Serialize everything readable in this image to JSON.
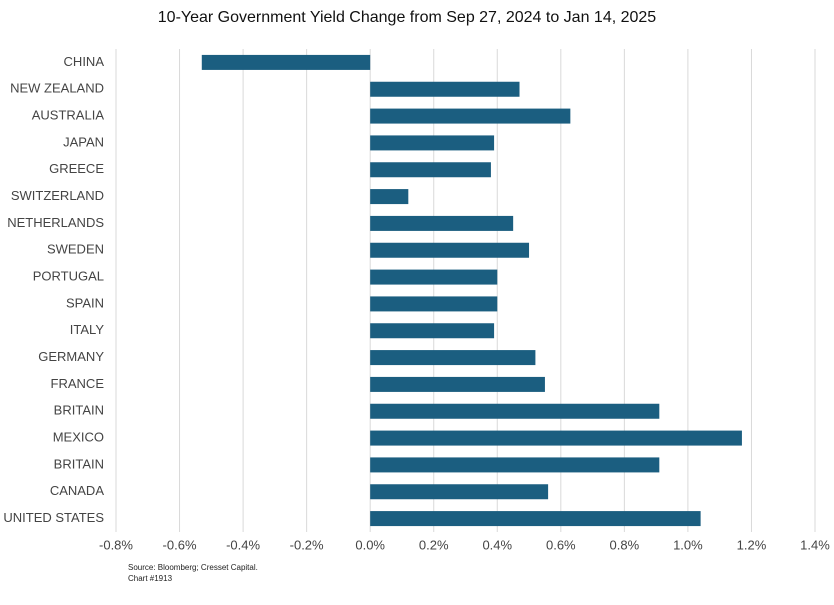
{
  "chart_data": {
    "type": "barh",
    "title": "10-Year Government Yield Change from Sep 27, 2024 to Jan 14, 2025",
    "categories": [
      "CHINA",
      "NEW ZEALAND",
      "AUSTRALIA",
      "JAPAN",
      "GREECE",
      "SWITZERLAND",
      "NETHERLANDS",
      "SWEDEN",
      "PORTUGAL",
      "SPAIN",
      "ITALY",
      "GERMANY",
      "FRANCE",
      "BRITAIN",
      "MEXICO",
      "BRITAIN",
      "CANADA",
      "UNITED STATES"
    ],
    "values": [
      -0.53,
      0.47,
      0.63,
      0.39,
      0.38,
      0.12,
      0.45,
      0.5,
      0.4,
      0.4,
      0.39,
      0.52,
      0.55,
      0.91,
      1.17,
      0.91,
      0.56,
      1.04
    ],
    "color": "#1b5e80",
    "xlim": [
      -0.8,
      1.4
    ],
    "xticks": [
      {
        "value": -0.8,
        "label": "-0.8%"
      },
      {
        "value": -0.6,
        "label": "-0.6%"
      },
      {
        "value": -0.4,
        "label": "-0.4%"
      },
      {
        "value": -0.2,
        "label": "-0.2%"
      },
      {
        "value": 0,
        "label": "0.0%"
      },
      {
        "value": 0.2,
        "label": "0.2%"
      },
      {
        "value": 0.4,
        "label": "0.4%"
      },
      {
        "value": 0.6,
        "label": "0.6%"
      },
      {
        "value": 0.8,
        "label": "0.8%"
      },
      {
        "value": 1.0,
        "label": "1.0%"
      },
      {
        "value": 1.2,
        "label": "1.2%"
      },
      {
        "value": 1.4,
        "label": "1.4%"
      }
    ],
    "grid": true,
    "source": "Source: Bloomberg; Cresset Capital.",
    "chart_id": "Chart #1913"
  }
}
